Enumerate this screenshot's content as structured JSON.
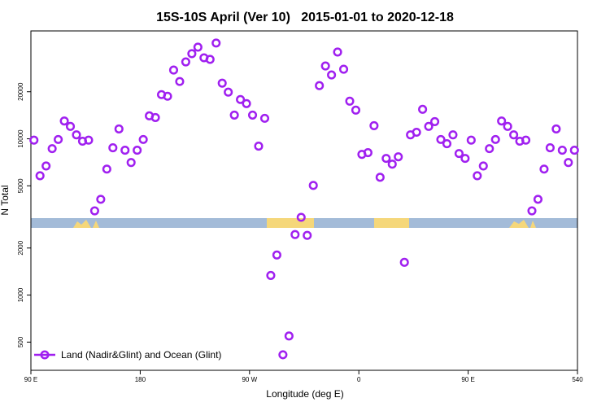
{
  "chart_data": {
    "type": "scatter",
    "title": "15S-10S April (Ver 10)   2015-01-01 to 2020-12-18",
    "x_label": "Longitude (deg E)",
    "y_label": "N Total",
    "x": [
      92.5,
      97.5,
      102.5,
      107.5,
      112.5,
      117.5,
      122.5,
      127.5,
      132.5,
      137.5,
      142.5,
      147.5,
      152.5,
      157.5,
      162.5,
      167.5,
      172.5,
      177.5,
      182.5,
      187.5,
      192.5,
      197.5,
      202.5,
      207.5,
      212.5,
      217.5,
      222.5,
      227.5,
      232.5,
      237.5,
      242.5,
      247.5,
      252.5,
      257.5,
      262.5,
      267.5,
      272.5,
      277.5,
      282.5,
      287.5,
      292.5,
      297.5,
      302.5,
      307.5,
      312.5,
      317.5,
      322.5,
      327.5,
      332.5,
      337.5,
      342.5,
      347.5,
      352.5,
      357.5,
      362.5,
      367.5,
      372.5,
      377.5,
      382.5,
      387.5,
      392.5,
      397.5,
      402.5,
      407.5,
      412.5,
      417.5,
      422.5,
      427.5,
      432.5,
      437.5,
      442.5,
      447.5,
      452.5,
      457.5,
      462.5,
      467.5,
      472.5,
      477.5,
      482.5,
      487.5,
      492.5,
      497.5,
      502.5,
      507.5,
      512.5,
      517.5,
      522.5,
      527.5,
      532.5,
      537.5
    ],
    "series": [
      {
        "name": "Land (Nadir&Glint) and Ocean (Glint)",
        "color": "#a020f0",
        "values": [
          9800,
          5800,
          6700,
          8650,
          9900,
          13000,
          12000,
          10600,
          9650,
          9800,
          3460,
          4100,
          6400,
          8760,
          11560,
          8450,
          7050,
          8450,
          9900,
          14020,
          13680,
          19170,
          18720,
          27530,
          23260,
          31050,
          35040,
          38580,
          32990,
          32210,
          40990,
          22700,
          19880,
          14180,
          17840,
          16800,
          14180,
          8970,
          13520,
          1335,
          1805,
          415,
          547,
          2440,
          3145,
          2410,
          5030,
          21890,
          29240,
          25610,
          35890,
          27860,
          17410,
          15250,
          7950,
          8150,
          12130,
          5670,
          7490,
          6880,
          7670,
          1620,
          10600,
          11010,
          15430,
          12000,
          12880,
          9900,
          9300,
          10600,
          8050,
          7490,
          9800,
          5800,
          6700,
          8650,
          9900,
          13000,
          12000,
          10600,
          9650,
          9800,
          3460,
          4100,
          6400,
          8760,
          11560,
          8450,
          7050,
          8450
        ]
      }
    ],
    "xlim": [
      90,
      540
    ],
    "xticks": [
      {
        "value": 90,
        "label": "90 E"
      },
      180,
      {
        "value": 270,
        "label": "90 W"
      },
      {
        "value": 360,
        "label": "0"
      },
      {
        "value": 450,
        "label": "90 E"
      },
      540
    ],
    "ylim": [
      330,
      49000
    ],
    "yticks": [
      500,
      1000,
      2000,
      5000,
      10000,
      20000
    ],
    "y_log": true,
    "legend": "bottom-left"
  }
}
